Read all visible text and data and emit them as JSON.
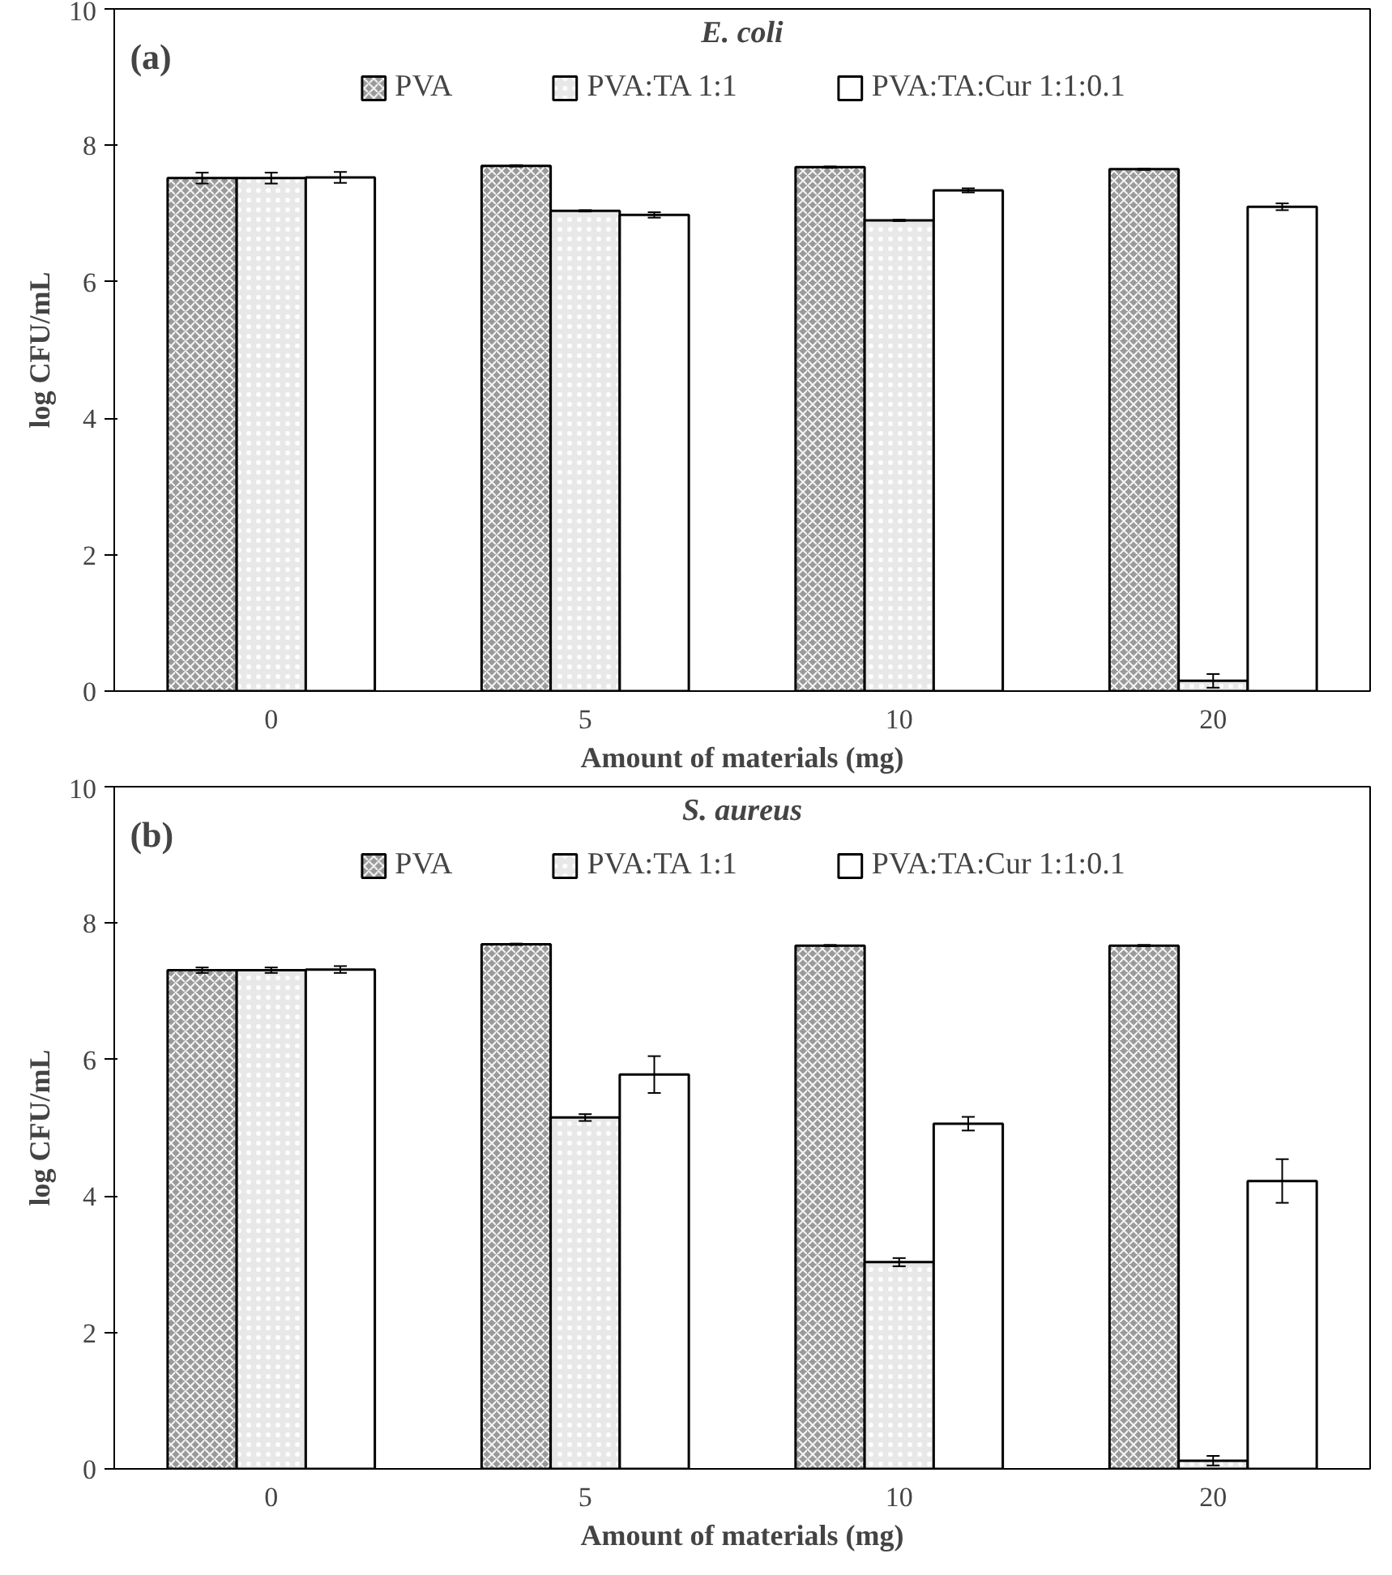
{
  "chart_data": [
    {
      "type": "bar",
      "title": "E. coli",
      "annotations": [
        "(a)"
      ],
      "xlabel": "Amount of materials (mg)",
      "ylabel": "log CFU/mL",
      "categories": [
        "0",
        "5",
        "10",
        "20"
      ],
      "ylim": [
        0,
        10
      ],
      "yticks": [
        0,
        2,
        4,
        6,
        8,
        10
      ],
      "grid": false,
      "legend": "top",
      "series": [
        {
          "name": "PVA",
          "color": "#9a9a9a",
          "values": [
            7.52,
            7.7,
            7.68,
            7.65
          ],
          "errors": [
            0.08,
            0.01,
            0.01,
            0.01
          ]
        },
        {
          "name": "PVA:TA 1:1",
          "color": "#e8e8e8",
          "values": [
            7.52,
            7.04,
            6.9,
            0.15
          ],
          "errors": [
            0.08,
            0.01,
            0.01,
            0.1
          ]
        },
        {
          "name": "PVA:TA:Cur 1:1:0.1",
          "color": "#ffffff",
          "values": [
            7.53,
            6.98,
            7.34,
            7.1
          ],
          "errors": [
            0.08,
            0.04,
            0.03,
            0.05
          ]
        }
      ]
    },
    {
      "type": "bar",
      "title": "S. aureus",
      "annotations": [
        "(b)"
      ],
      "xlabel": "Amount of materials (mg)",
      "ylabel": "log CFU/mL",
      "categories": [
        "0",
        "5",
        "10",
        "20"
      ],
      "ylim": [
        0,
        10
      ],
      "yticks": [
        0,
        2,
        4,
        6,
        8,
        10
      ],
      "grid": false,
      "legend": "top",
      "series": [
        {
          "name": "PVA",
          "color": "#9a9a9a",
          "values": [
            7.31,
            7.69,
            7.67,
            7.67
          ],
          "errors": [
            0.04,
            0.01,
            0.01,
            0.01
          ]
        },
        {
          "name": "PVA:TA 1:1",
          "color": "#e8e8e8",
          "values": [
            7.31,
            5.15,
            3.03,
            0.12
          ],
          "errors": [
            0.04,
            0.05,
            0.06,
            0.07
          ]
        },
        {
          "name": "PVA:TA:Cur 1:1:0.1",
          "color": "#ffffff",
          "values": [
            7.32,
            5.78,
            5.06,
            4.22
          ],
          "errors": [
            0.05,
            0.27,
            0.1,
            0.32
          ]
        }
      ]
    }
  ]
}
